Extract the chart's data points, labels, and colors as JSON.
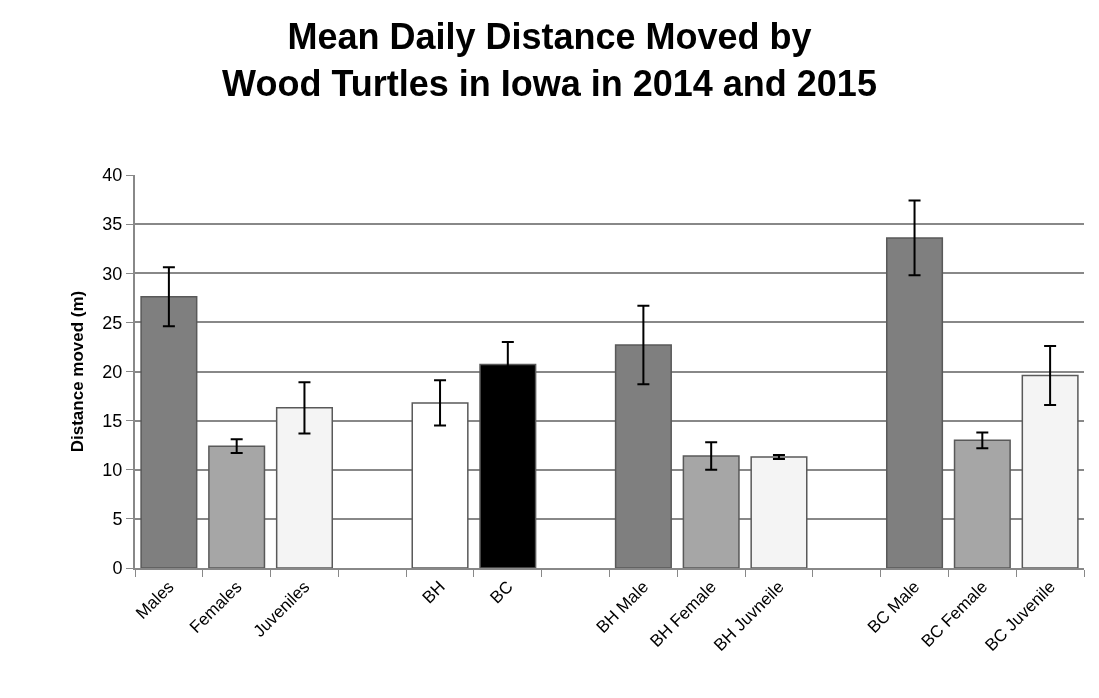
{
  "chart_data": {
    "type": "bar",
    "title": "Mean Daily Distance Moved by\nWood Turtles in Iowa in 2014 and 2015",
    "ylabel": "Distance moved (m)",
    "categories": [
      "Males",
      "Females",
      "Juveniles",
      null,
      "BH",
      "BC",
      null,
      "BH Male",
      "BH Female",
      "BH Juvneile",
      null,
      "BC Male",
      "BC Female",
      "BC Juvenile"
    ],
    "values": [
      27.6,
      12.4,
      16.3,
      null,
      16.8,
      20.7,
      null,
      22.7,
      11.4,
      11.3,
      null,
      33.6,
      13.0,
      19.6
    ],
    "errors": [
      3.0,
      0.7,
      2.6,
      null,
      2.3,
      2.3,
      null,
      4.0,
      1.4,
      0.2,
      null,
      3.8,
      0.8,
      3.0
    ],
    "colors": [
      "#7f7f7f",
      "#a6a6a6",
      "#f4f4f4",
      "#ffffff",
      "#ffffff",
      "#000000",
      "#ffffff",
      "#7f7f7f",
      "#a6a6a6",
      "#f4f4f4",
      "#ffffff",
      "#7f7f7f",
      "#a6a6a6",
      "#f4f4f4"
    ],
    "ylim": [
      0,
      40
    ],
    "yticks": [
      0,
      5,
      10,
      15,
      20,
      25,
      30,
      35,
      40
    ],
    "grid": "y"
  }
}
